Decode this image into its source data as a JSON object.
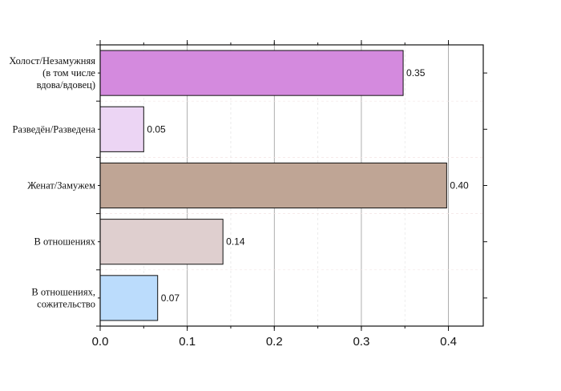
{
  "chart_data": {
    "type": "bar",
    "orientation": "horizontal",
    "title": "",
    "xlabel": "",
    "ylabel": "",
    "categories": [
      [
        "Холост/Незамужняя",
        "(в том числе",
        "вдова/вдовец)"
      ],
      [
        "Разведён/Разведена"
      ],
      [
        "Женат/Замужем"
      ],
      [
        "В отношениях"
      ],
      [
        "В отношениях,",
        "сожительство"
      ]
    ],
    "values": [
      0.348,
      0.05,
      0.398,
      0.141,
      0.066
    ],
    "value_labels": [
      "0.35",
      "0.05",
      "0.40",
      "0.14",
      "0.07"
    ],
    "colors": [
      "#d48ade",
      "#ecd5f4",
      "#bfa595",
      "#dfcfcf",
      "#bbdcfc"
    ],
    "xlim": [
      0,
      0.44
    ],
    "xticks": [
      0.0,
      0.1,
      0.2,
      0.3,
      0.4
    ],
    "xtick_labels": [
      "0.0",
      "0.1",
      "0.2",
      "0.3",
      "0.4"
    ],
    "grid": true
  }
}
